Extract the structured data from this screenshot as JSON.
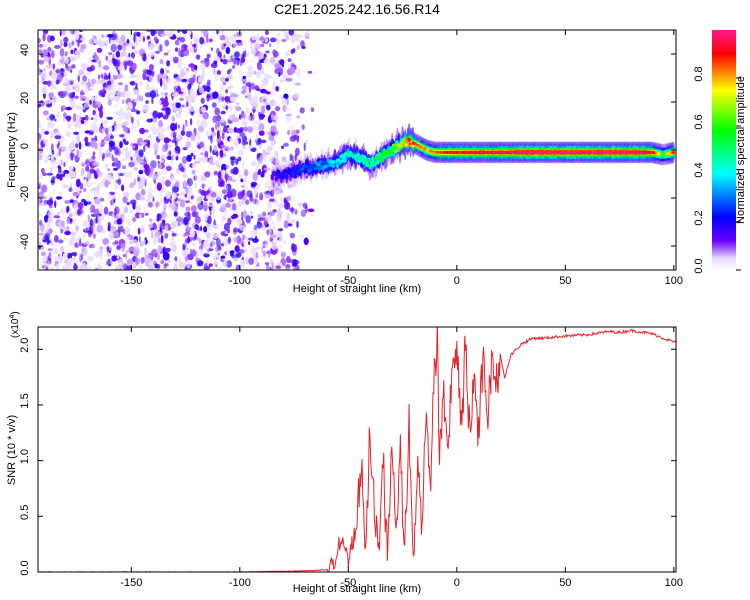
{
  "title": "C2E1.2025.242.16.56.R14",
  "chart_data": [
    {
      "type": "heatmap",
      "title": "C2E1.2025.242.16.56.R14",
      "xlabel": "Height of straight line (km)",
      "ylabel": "Frequency (Hz)",
      "xlim": [
        -193,
        101
      ],
      "ylim": [
        -50,
        50
      ],
      "x_ticks": [
        -150,
        -100,
        -50,
        0,
        50,
        100
      ],
      "x_tick_labels": [
        "-150",
        "-100",
        "-50",
        "0",
        "50",
        "100"
      ],
      "y_ticks": [
        -40,
        -20,
        0,
        20,
        40
      ],
      "y_tick_labels": [
        "-40",
        "-20",
        "0",
        "20",
        "40"
      ],
      "colorbar": {
        "label": "Normalized spectral amplitude",
        "range": [
          0,
          1
        ],
        "ticks": [
          0.0,
          0.2,
          0.4,
          0.6,
          0.8
        ],
        "tick_labels": [
          "0.0",
          "0.2",
          "0.4",
          "0.6",
          "0.8"
        ],
        "colormap": [
          "#ffffff",
          "#6a00ff",
          "#0000ff",
          "#00ffff",
          "#00ff00",
          "#ffff00",
          "#ff0000",
          "#ff0080"
        ]
      },
      "noise_region_km": [
        -193,
        -70
      ],
      "signal_track": {
        "x_km": [
          -85,
          -78,
          -72,
          -66,
          -60,
          -55,
          -50,
          -45,
          -40,
          -35,
          -30,
          -26,
          -22,
          -18,
          -14,
          -10,
          -5,
          0,
          10,
          20,
          30,
          40,
          50,
          60,
          70,
          80,
          90,
          95,
          100
        ],
        "freq_hz": [
          -11,
          -10,
          -8,
          -7,
          -6,
          -5,
          -2,
          -3,
          -6,
          -3,
          0,
          2,
          4,
          2,
          0,
          -1,
          -1,
          -1,
          -1,
          -1,
          -1,
          -1,
          -1,
          -1,
          -1,
          -1,
          -1,
          -2,
          -1
        ],
        "amplitude": [
          0.15,
          0.2,
          0.25,
          0.3,
          0.35,
          0.4,
          0.45,
          0.45,
          0.5,
          0.55,
          0.6,
          0.7,
          0.9,
          0.85,
          0.8,
          0.85,
          0.9,
          0.9,
          0.95,
          0.95,
          1.0,
          1.0,
          1.0,
          1.0,
          1.0,
          1.0,
          0.95,
          0.6,
          0.9
        ]
      }
    },
    {
      "type": "line",
      "xlabel": "Height of straight line (km)",
      "ylabel": "SNR (10 * v/v)",
      "multiplier_label": "(x10",
      "multiplier_exponent": "4",
      "multiplier_suffix": ")",
      "xlim": [
        -193,
        101
      ],
      "ylim": [
        0,
        2.2
      ],
      "x_ticks": [
        -150,
        -100,
        -50,
        0,
        50,
        100
      ],
      "x_tick_labels": [
        "-150",
        "-100",
        "-50",
        "0",
        "50",
        "100"
      ],
      "y_ticks": [
        0.0,
        0.5,
        1.0,
        1.5,
        2.0
      ],
      "y_tick_labels": [
        "0.0",
        "0.5",
        "1.0",
        "1.5",
        "2.0"
      ],
      "line_color": "#e8232b",
      "series": [
        {
          "name": "SNR",
          "x": [
            -193,
            -150,
            -100,
            -70,
            -60,
            -56,
            -53,
            -50,
            -47,
            -44,
            -42,
            -40,
            -38,
            -36,
            -34,
            -32,
            -30,
            -28,
            -26,
            -24,
            -22,
            -20,
            -18,
            -16,
            -14,
            -12,
            -10,
            -9,
            -8,
            -6,
            -4,
            -2,
            0,
            2,
            4,
            6,
            8,
            10,
            12,
            14,
            16,
            18,
            20,
            22,
            25,
            30,
            35,
            40,
            50,
            60,
            70,
            75,
            80,
            90,
            95,
            101
          ],
          "y": [
            0.0,
            0.0,
            0.0,
            0.01,
            0.02,
            0.1,
            0.3,
            0.1,
            0.35,
            0.85,
            0.2,
            1.3,
            0.5,
            0.25,
            1.0,
            0.15,
            1.2,
            0.3,
            1.1,
            0.2,
            1.4,
            0.1,
            1.1,
            0.4,
            1.5,
            0.8,
            1.9,
            2.15,
            0.9,
            1.7,
            1.1,
            1.8,
            2.1,
            1.4,
            1.95,
            1.2,
            1.85,
            1.3,
            1.9,
            1.35,
            1.85,
            1.7,
            1.95,
            1.75,
            1.95,
            2.05,
            2.1,
            2.1,
            2.12,
            2.13,
            2.16,
            2.15,
            2.17,
            2.14,
            2.1,
            2.06
          ]
        }
      ]
    }
  ]
}
